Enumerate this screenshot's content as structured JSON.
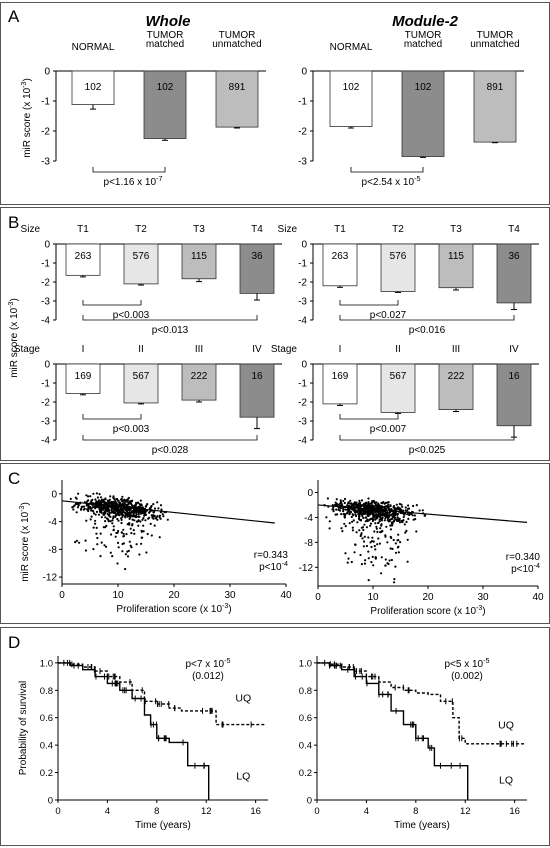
{
  "panels": [
    {
      "letter": "A",
      "headings": [
        "Whole",
        "Module-2"
      ],
      "ylabel": "miR score (x 10",
      "ylabel_exp": "-3",
      "ylabel_tail": ")"
    },
    {
      "letter": "B",
      "ylabel": "miR score (x 10",
      "ylabel_exp": "-3",
      "ylabel_tail": ")"
    },
    {
      "letter": "C",
      "ylabel": "miR score (x 10",
      "ylabel_exp": "-3",
      "ylabel_tail": ")"
    },
    {
      "letter": "D",
      "ylabel": "Probability of survival"
    }
  ],
  "colors": {
    "white": "#ffffff",
    "light": "#e6e6e6",
    "mid": "#bdbdbd",
    "dark": "#8c8c8c",
    "frame": "#555555"
  },
  "chart_data": [
    {
      "id": "A-whole",
      "type": "bar",
      "panel": "A",
      "title": "Whole",
      "ylim": [
        -3,
        0
      ],
      "yticks": [
        "0",
        "-1",
        "-2",
        "-3"
      ],
      "categories": [
        "NORMAL",
        "TUMOR matched",
        "TUMOR unmatched"
      ],
      "cat_lines": [
        [
          "NORMAL"
        ],
        [
          "TUMOR",
          "matched"
        ],
        [
          "TUMOR",
          "unmatched"
        ]
      ],
      "values": [
        -1.12,
        -2.25,
        -1.87
      ],
      "errors": [
        0.15,
        0.06,
        0.03
      ],
      "n": [
        "102",
        "102",
        "891"
      ],
      "fills": [
        "white",
        "dark",
        "mid"
      ],
      "brackets": [
        {
          "from": 0,
          "to": 1,
          "base": "p<1.16 x 10",
          "exp": "-7",
          "tail": ""
        }
      ]
    },
    {
      "id": "A-module2",
      "type": "bar",
      "panel": "A",
      "title": "Module-2",
      "ylim": [
        -3,
        0
      ],
      "yticks": [
        "0",
        "-1",
        "-2",
        "-3"
      ],
      "categories": [
        "NORMAL",
        "TUMOR matched",
        "TUMOR unmatched"
      ],
      "cat_lines": [
        [
          "NORMAL"
        ],
        [
          "TUMOR",
          "matched"
        ],
        [
          "TUMOR",
          "unmatched"
        ]
      ],
      "values": [
        -1.85,
        -2.85,
        -2.37
      ],
      "errors": [
        0.05,
        0.03,
        0.02
      ],
      "n": [
        "102",
        "102",
        "891"
      ],
      "fills": [
        "white",
        "dark",
        "mid"
      ],
      "brackets": [
        {
          "from": 0,
          "to": 1,
          "base": "p<2.54 x 10",
          "exp": "-5",
          "tail": ""
        }
      ]
    },
    {
      "id": "B-size-whole",
      "type": "bar",
      "panel": "B",
      "row_label": "Size",
      "ylim": [
        -4,
        0
      ],
      "yticks": [
        "0",
        "-1",
        "-2",
        "-3",
        "-4"
      ],
      "categories": [
        "T1",
        "T2",
        "T3",
        "T4"
      ],
      "cat_lines": [
        [
          "T1"
        ],
        [
          "T2"
        ],
        [
          "T3"
        ],
        [
          "T4"
        ]
      ],
      "values": [
        -1.65,
        -2.1,
        -1.83,
        -2.6
      ],
      "errors": [
        0.08,
        0.06,
        0.15,
        0.35
      ],
      "n": [
        "263",
        "576",
        "115",
        "36"
      ],
      "fills": [
        "white",
        "light",
        "mid",
        "dark"
      ],
      "brackets": [
        {
          "from": 0,
          "to": 1,
          "base": "p<0.003",
          "exp": "",
          "tail": ""
        },
        {
          "from": 0,
          "to": 3,
          "base": "p<0.013",
          "exp": "",
          "tail": ""
        }
      ]
    },
    {
      "id": "B-size-module2",
      "type": "bar",
      "panel": "B",
      "row_label": "Size",
      "ylim": [
        -4,
        0
      ],
      "yticks": [
        "0",
        "-1",
        "-2",
        "-3",
        "-4"
      ],
      "categories": [
        "T1",
        "T2",
        "T3",
        "T4"
      ],
      "cat_lines": [
        [
          "T1"
        ],
        [
          "T2"
        ],
        [
          "T3"
        ],
        [
          "T4"
        ]
      ],
      "values": [
        -2.2,
        -2.5,
        -2.3,
        -3.1
      ],
      "errors": [
        0.08,
        0.05,
        0.12,
        0.35
      ],
      "n": [
        "263",
        "576",
        "115",
        "36"
      ],
      "fills": [
        "white",
        "light",
        "mid",
        "dark"
      ],
      "brackets": [
        {
          "from": 0,
          "to": 1,
          "base": "p<0.027",
          "exp": "",
          "tail": ""
        },
        {
          "from": 0,
          "to": 3,
          "base": "p<0.016",
          "exp": "",
          "tail": ""
        }
      ]
    },
    {
      "id": "B-stage-whole",
      "type": "bar",
      "panel": "B",
      "row_label": "Stage",
      "ylim": [
        -4,
        0
      ],
      "yticks": [
        "0",
        "-1",
        "-2",
        "-3",
        "-4"
      ],
      "categories": [
        "I",
        "II",
        "III",
        "IV"
      ],
      "cat_lines": [
        [
          "I"
        ],
        [
          "II"
        ],
        [
          "III"
        ],
        [
          "IV"
        ]
      ],
      "values": [
        -1.55,
        -2.05,
        -1.9,
        -2.8
      ],
      "errors": [
        0.07,
        0.05,
        0.1,
        0.6
      ],
      "n": [
        "169",
        "567",
        "222",
        "16"
      ],
      "fills": [
        "white",
        "light",
        "mid",
        "dark"
      ],
      "brackets": [
        {
          "from": 0,
          "to": 1,
          "base": "p<0.003",
          "exp": "",
          "tail": ""
        },
        {
          "from": 0,
          "to": 3,
          "base": "p<0.028",
          "exp": "",
          "tail": ""
        }
      ]
    },
    {
      "id": "B-stage-module2",
      "type": "bar",
      "panel": "B",
      "row_label": "Stage",
      "ylim": [
        -4,
        0
      ],
      "yticks": [
        "0",
        "-1",
        "-2",
        "-3",
        "-4"
      ],
      "categories": [
        "I",
        "II",
        "III",
        "IV"
      ],
      "cat_lines": [
        [
          "I"
        ],
        [
          "II"
        ],
        [
          "III"
        ],
        [
          "IV"
        ]
      ],
      "values": [
        -2.1,
        -2.55,
        -2.4,
        -3.25
      ],
      "errors": [
        0.08,
        0.05,
        0.1,
        0.6
      ],
      "n": [
        "169",
        "567",
        "222",
        "16"
      ],
      "fills": [
        "white",
        "light",
        "mid",
        "dark"
      ],
      "brackets": [
        {
          "from": 0,
          "to": 1,
          "base": "p<0.007",
          "exp": "",
          "tail": ""
        },
        {
          "from": 0,
          "to": 3,
          "base": "p<0.025",
          "exp": "",
          "tail": ""
        }
      ]
    },
    {
      "id": "C-whole",
      "type": "scatter",
      "panel": "C",
      "xlim": [
        0,
        40
      ],
      "ylim": [
        -13,
        2
      ],
      "xticks": [
        0,
        10,
        20,
        30,
        40
      ],
      "yticks": [
        0,
        -4,
        -8,
        -12
      ],
      "xlabel": "Proliferation score (x 10",
      "xlabel_exp": "-3",
      "xlabel_tail": ")",
      "r": "r=0.343",
      "p_base": "p<10",
      "p_exp": "-4",
      "fit": [
        [
          0,
          -1.0
        ],
        [
          38,
          -4.2
        ]
      ],
      "x_mean": 10,
      "x_sd": 5,
      "y_center": -1.1,
      "y_spread": 1.3,
      "slope": -0.085,
      "tail_prob": 0.25
    },
    {
      "id": "C-module2",
      "type": "scatter",
      "panel": "C",
      "xlim": [
        0,
        40
      ],
      "ylim": [
        -15,
        2
      ],
      "xticks": [
        0,
        10,
        20,
        30,
        40
      ],
      "yticks": [
        0,
        -4,
        -8,
        -12
      ],
      "xlabel": "Proliferation score (x 10",
      "xlabel_exp": "-3",
      "xlabel_tail": ")",
      "r": "r=0.340",
      "p_base": "p<10",
      "p_exp": "-4",
      "fit": [
        [
          0,
          -2.0
        ],
        [
          38,
          -4.8
        ]
      ],
      "x_mean": 10,
      "x_sd": 5,
      "y_center": -2.1,
      "y_spread": 1.4,
      "slope": -0.075,
      "tail_prob": 0.3
    },
    {
      "id": "D-whole",
      "type": "line",
      "panel": "D",
      "xlabel": "Time (years)",
      "xlim": [
        0,
        17
      ],
      "ylim": [
        0,
        1.05
      ],
      "xticks": [
        "0",
        "4",
        "8",
        "12",
        "16"
      ],
      "yticks": [
        "0",
        "0.2",
        "0.4",
        "0.6",
        "0.8",
        "1.0"
      ],
      "p_base": "p<7 x 10",
      "p_exp": "-5",
      "p_sub": "(0.012)",
      "series": [
        {
          "name": "UQ",
          "dash": true,
          "points": [
            [
              0,
              1.0
            ],
            [
              1,
              0.99
            ],
            [
              2,
              0.97
            ],
            [
              3,
              0.94
            ],
            [
              4,
              0.9
            ],
            [
              5,
              0.86
            ],
            [
              6,
              0.8
            ],
            [
              7,
              0.72
            ],
            [
              8,
              0.7
            ],
            [
              9,
              0.67
            ],
            [
              10,
              0.65
            ],
            [
              12,
              0.65
            ],
            [
              12.8,
              0.55
            ],
            [
              16.8,
              0.55
            ]
          ]
        },
        {
          "name": "LQ",
          "dash": false,
          "points": [
            [
              0,
              1.0
            ],
            [
              1,
              0.98
            ],
            [
              2,
              0.95
            ],
            [
              3,
              0.9
            ],
            [
              4,
              0.85
            ],
            [
              5,
              0.8
            ],
            [
              6,
              0.74
            ],
            [
              7,
              0.62
            ],
            [
              7.5,
              0.55
            ],
            [
              8,
              0.45
            ],
            [
              9,
              0.42
            ],
            [
              10,
              0.42
            ],
            [
              10.5,
              0.25
            ],
            [
              11,
              0.25
            ],
            [
              12,
              0.25
            ],
            [
              12.2,
              0.0
            ]
          ]
        }
      ],
      "series_labels": [
        {
          "name": "UQ",
          "at": [
            15,
            0.72
          ]
        },
        {
          "name": "LQ",
          "at": [
            15,
            0.15
          ]
        }
      ]
    },
    {
      "id": "D-module2",
      "type": "line",
      "panel": "D",
      "xlabel": "Time (years)",
      "xlim": [
        0,
        17
      ],
      "ylim": [
        0,
        1.05
      ],
      "xticks": [
        "0",
        "4",
        "8",
        "12",
        "16"
      ],
      "yticks": [
        "0",
        "0.2",
        "0.4",
        "0.6",
        "0.8",
        "1.0"
      ],
      "p_base": "p<5 x 10",
      "p_exp": "-5",
      "p_sub": "(0.002)",
      "series": [
        {
          "name": "UQ",
          "dash": true,
          "points": [
            [
              0,
              1.0
            ],
            [
              1,
              0.99
            ],
            [
              2,
              0.97
            ],
            [
              3,
              0.94
            ],
            [
              4,
              0.9
            ],
            [
              5,
              0.86
            ],
            [
              6,
              0.82
            ],
            [
              7,
              0.8
            ],
            [
              8,
              0.78
            ],
            [
              9,
              0.77
            ],
            [
              10,
              0.72
            ],
            [
              11,
              0.6
            ],
            [
              11.5,
              0.45
            ],
            [
              12,
              0.41
            ],
            [
              16.8,
              0.41
            ]
          ]
        },
        {
          "name": "LQ",
          "dash": false,
          "points": [
            [
              0,
              1.0
            ],
            [
              1,
              0.98
            ],
            [
              2,
              0.95
            ],
            [
              3,
              0.9
            ],
            [
              4,
              0.85
            ],
            [
              5,
              0.77
            ],
            [
              6,
              0.65
            ],
            [
              7,
              0.55
            ],
            [
              8,
              0.45
            ],
            [
              9,
              0.38
            ],
            [
              9.5,
              0.25
            ],
            [
              11,
              0.25
            ],
            [
              12,
              0.25
            ],
            [
              12.2,
              0.0
            ]
          ]
        }
      ],
      "series_labels": [
        {
          "name": "UQ",
          "at": [
            15.3,
            0.52
          ]
        },
        {
          "name": "LQ",
          "at": [
            15.3,
            0.12
          ]
        }
      ]
    }
  ]
}
